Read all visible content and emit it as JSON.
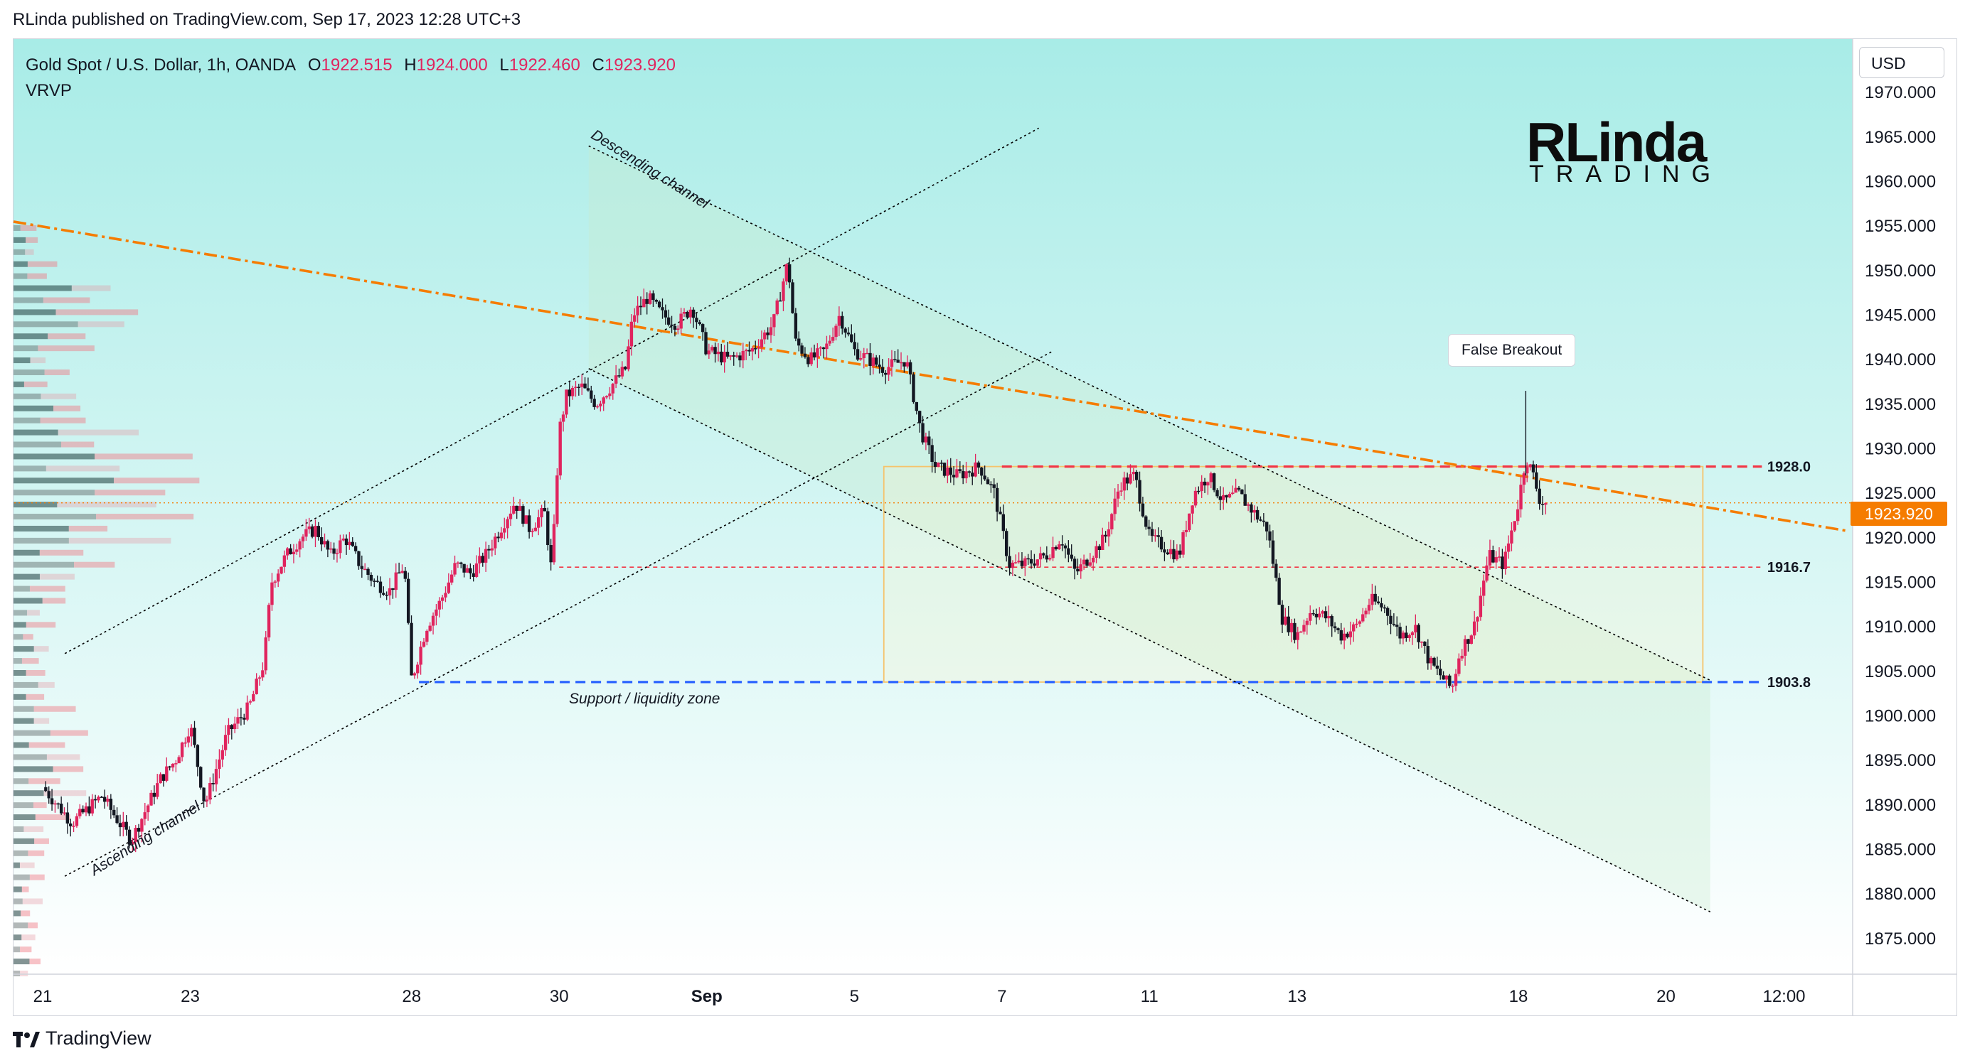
{
  "header": {
    "publish_line": "RLinda published on TradingView.com, Sep 17, 2023 12:28 UTC+3"
  },
  "legend": {
    "symbol": "Gold Spot / U.S. Dollar, 1h, OANDA",
    "indicator": "VRVP",
    "o_label": "O",
    "o_value": "1922.515",
    "h_label": "H",
    "h_value": "1924.000",
    "l_label": "L",
    "l_value": "1922.460",
    "c_label": "C",
    "c_value": "1923.920"
  },
  "currency_button": "USD",
  "brand": {
    "line1": "RLinda",
    "line2": "TRADING"
  },
  "footer": {
    "logo_text": "TradingView"
  },
  "colors": {
    "up": "#e0245e",
    "down": "#131722",
    "orange": "#f57c00",
    "resistance": "#f23645",
    "support": "#2962ff",
    "range_box": "#f5c36b",
    "bg_top": "#a8ece7",
    "bg_bottom": "#ffffff"
  },
  "icons": [
    "tradingview-logo-icon",
    "candle-logo-icon"
  ],
  "chart_data": {
    "type": "candlestick",
    "title": "Gold Spot / U.S. Dollar, 1h, OANDA",
    "currency": "USD",
    "last_price": "1923.920",
    "ylim": [
      1871,
      1976
    ],
    "y_ticks": [
      "1970.000",
      "1965.000",
      "1960.000",
      "1955.000",
      "1950.000",
      "1945.000",
      "1940.000",
      "1935.000",
      "1930.000",
      "1925.000",
      "1920.000",
      "1915.000",
      "1910.000",
      "1905.000",
      "1900.000",
      "1895.000",
      "1890.000",
      "1885.000",
      "1880.000",
      "1875.000"
    ],
    "x_tick_labels": [
      "21",
      "23",
      "28",
      "30",
      "Sep",
      "5",
      "7",
      "11",
      "13",
      "18",
      "20",
      "12:00"
    ],
    "x_tick_index": [
      0,
      20,
      50,
      70,
      90,
      110,
      130,
      150,
      170,
      200,
      220,
      236
    ],
    "index_max": 240,
    "price_path": [
      [
        0,
        1892
      ],
      [
        4,
        1888
      ],
      [
        8,
        1891
      ],
      [
        12,
        1886
      ],
      [
        16,
        1893
      ],
      [
        18,
        1895
      ],
      [
        20,
        1899
      ],
      [
        22,
        1890
      ],
      [
        25,
        1898
      ],
      [
        28,
        1901
      ],
      [
        30,
        1906
      ],
      [
        31,
        1915
      ],
      [
        33,
        1918
      ],
      [
        35,
        1920
      ],
      [
        37,
        1921
      ],
      [
        39,
        1918
      ],
      [
        41,
        1920
      ],
      [
        43,
        1917
      ],
      [
        45,
        1915
      ],
      [
        47,
        1914
      ],
      [
        49,
        1917
      ],
      [
        50,
        1904
      ],
      [
        52,
        1910
      ],
      [
        54,
        1913
      ],
      [
        56,
        1917
      ],
      [
        58,
        1916
      ],
      [
        60,
        1918
      ],
      [
        62,
        1921
      ],
      [
        64,
        1924
      ],
      [
        66,
        1921
      ],
      [
        68,
        1923
      ],
      [
        69,
        1916
      ],
      [
        70,
        1932
      ],
      [
        71,
        1936
      ],
      [
        73,
        1937
      ],
      [
        75,
        1935
      ],
      [
        77,
        1937
      ],
      [
        79,
        1939
      ],
      [
        80,
        1945
      ],
      [
        82,
        1947
      ],
      [
        84,
        1945
      ],
      [
        86,
        1944
      ],
      [
        88,
        1946
      ],
      [
        90,
        1941
      ],
      [
        93,
        1940
      ],
      [
        96,
        1941
      ],
      [
        99,
        1944
      ],
      [
        101,
        1951
      ],
      [
        102,
        1942
      ],
      [
        104,
        1940
      ],
      [
        106,
        1941
      ],
      [
        108,
        1945
      ],
      [
        110,
        1941
      ],
      [
        114,
        1939
      ],
      [
        117,
        1940
      ],
      [
        119,
        1932
      ],
      [
        121,
        1928
      ],
      [
        124,
        1927
      ],
      [
        127,
        1928
      ],
      [
        129,
        1925
      ],
      [
        131,
        1917
      ],
      [
        133,
        1917
      ],
      [
        136,
        1918
      ],
      [
        138,
        1920
      ],
      [
        140,
        1916
      ],
      [
        142,
        1918
      ],
      [
        144,
        1920
      ],
      [
        146,
        1926
      ],
      [
        148,
        1927
      ],
      [
        150,
        1920
      ],
      [
        152,
        1919
      ],
      [
        154,
        1918
      ],
      [
        156,
        1925
      ],
      [
        158,
        1927
      ],
      [
        160,
        1924
      ],
      [
        162,
        1925
      ],
      [
        164,
        1923
      ],
      [
        166,
        1921
      ],
      [
        168,
        1911
      ],
      [
        170,
        1909
      ],
      [
        172,
        1912
      ],
      [
        174,
        1911
      ],
      [
        176,
        1909
      ],
      [
        178,
        1910
      ],
      [
        180,
        1913
      ],
      [
        182,
        1912
      ],
      [
        184,
        1909
      ],
      [
        186,
        1910
      ],
      [
        188,
        1906
      ],
      [
        190,
        1904
      ],
      [
        191,
        1903
      ],
      [
        192,
        1907
      ],
      [
        194,
        1910
      ],
      [
        196,
        1918
      ],
      [
        198,
        1917
      ],
      [
        200,
        1924
      ],
      [
        201,
        1929
      ],
      [
        202,
        1927
      ],
      [
        203,
        1924
      ],
      [
        204,
        1923.9
      ]
    ],
    "indicators": [
      {
        "name": "VRVP",
        "type": "volume-profile"
      }
    ],
    "levels": [
      {
        "label": "1928.0",
        "value": 1928.0,
        "style": "dashed",
        "color": "#f23645"
      },
      {
        "label": "1916.7",
        "value": 1916.7,
        "style": "dashed-thin",
        "color": "#f23645"
      },
      {
        "label": "1903.8",
        "value": 1903.8,
        "style": "dashed",
        "color": "#2962ff"
      }
    ],
    "annotations": [
      {
        "text": "Descending channel"
      },
      {
        "text": "Ascending channel"
      },
      {
        "text": "Support / liquidity zone"
      },
      {
        "text": "False Breakout"
      }
    ],
    "range_box": {
      "x0": 114,
      "x1": 225,
      "y0": 1903.8,
      "y1": 1928.0
    },
    "descending_trendline": {
      "x0": 0,
      "y0": 1955.5,
      "x1": 240,
      "y1": 1920.5
    },
    "channels": [
      {
        "name": "ascending",
        "lower": [
          [
            3,
            1882
          ],
          [
            137,
            1941
          ]
        ],
        "upper": [
          [
            3,
            1907
          ],
          [
            135,
            1966
          ]
        ]
      },
      {
        "name": "descending",
        "upper": [
          [
            74,
            1964
          ],
          [
            226,
            1904
          ]
        ],
        "lower": [
          [
            74,
            1939
          ],
          [
            226,
            1878
          ]
        ]
      }
    ]
  }
}
